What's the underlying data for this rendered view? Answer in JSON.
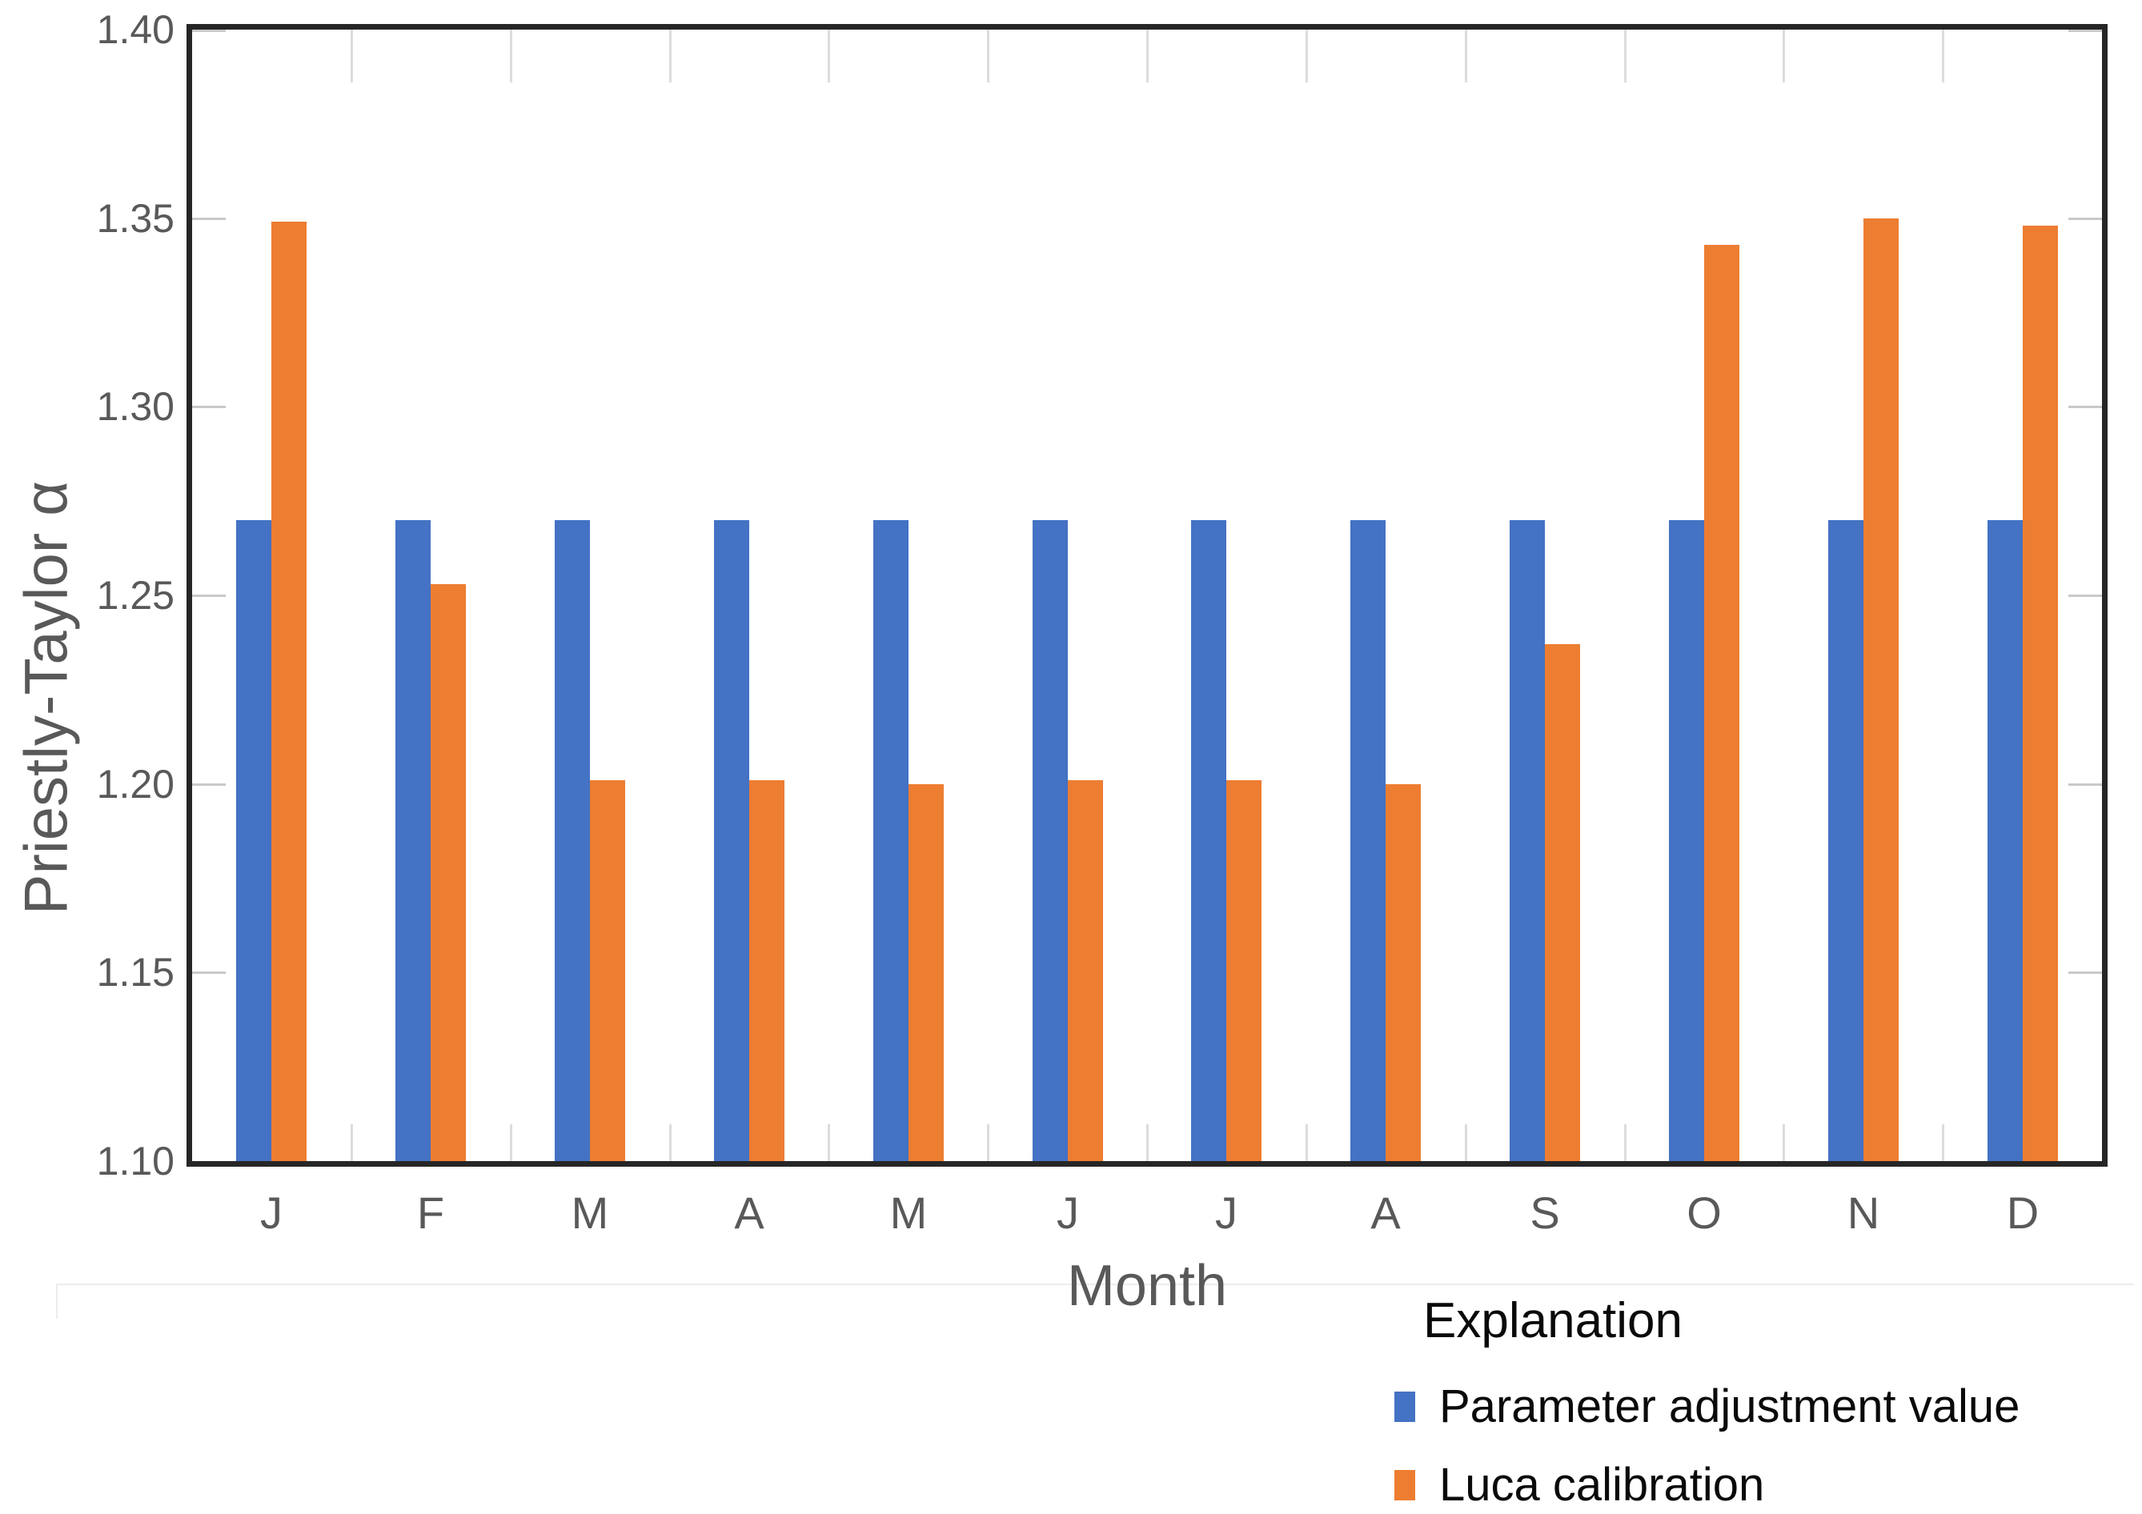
{
  "chart_data": {
    "type": "bar",
    "title": "",
    "xlabel": "Month",
    "ylabel": "Priestly-Taylor α",
    "categories": [
      "J",
      "F",
      "M",
      "A",
      "M",
      "J",
      "J",
      "A",
      "S",
      "O",
      "N",
      "D"
    ],
    "series": [
      {
        "name": "Parameter adjustment value",
        "color": "#4472C4",
        "values": [
          1.27,
          1.27,
          1.27,
          1.27,
          1.27,
          1.27,
          1.27,
          1.27,
          1.27,
          1.27,
          1.27,
          1.27
        ]
      },
      {
        "name": "Luca calibration",
        "color": "#ED7D31",
        "values": [
          1.349,
          1.253,
          1.201,
          1.201,
          1.2,
          1.201,
          1.201,
          1.2,
          1.237,
          1.343,
          1.35,
          1.348
        ]
      }
    ],
    "ylim": [
      1.1,
      1.4
    ],
    "yticks": [
      1.4,
      1.35,
      1.3,
      1.25,
      1.2,
      1.15,
      1.1
    ],
    "ytick_labels": [
      "1.40",
      "1.35",
      "1.30",
      "1.25",
      "1.20",
      "1.15",
      "1.10"
    ],
    "grid": "tick stubs on axes, faint category separators, no full gridlines",
    "legend": {
      "title": "Explanation",
      "position": "below-right"
    },
    "frame_color": "#262626",
    "axis_text_color": "#595959"
  }
}
